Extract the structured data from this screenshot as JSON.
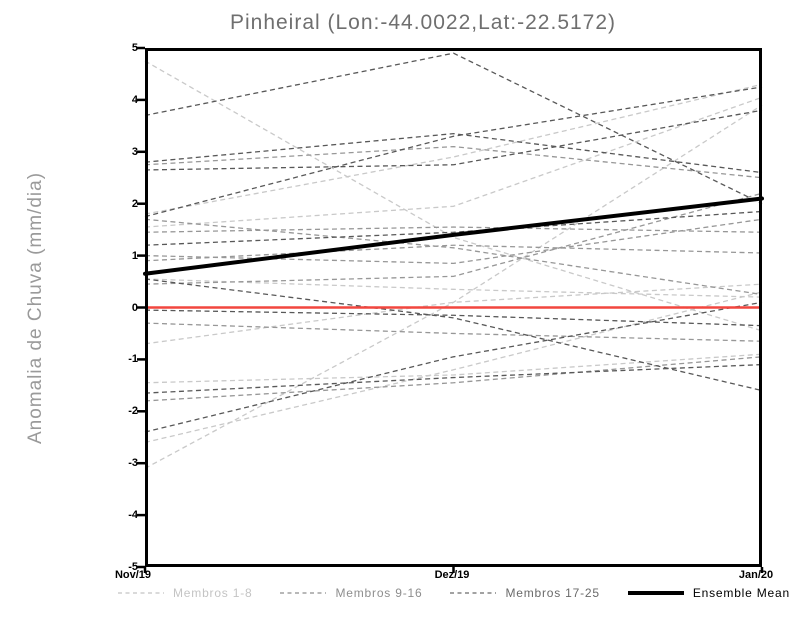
{
  "title": "Pinheiral (Lon:-44.0022,Lat:-22.5172)",
  "chart_data": {
    "type": "line",
    "title": "Pinheiral (Lon:-44.0022,Lat:-22.5172)",
    "ylabel": "Anomalia de Chuva (mm/dia)",
    "xlabel": "",
    "x_categories": [
      "Nov/19",
      "Dez/19",
      "Jan/20"
    ],
    "ylim": [
      -5,
      5
    ],
    "y_ticks": [
      5,
      4,
      3,
      2,
      1,
      0,
      -1,
      -2,
      -3,
      -4,
      -5
    ],
    "grid": false,
    "legend_position": "bottom",
    "zero_line": {
      "value": 0,
      "color": "#f2463f"
    },
    "groups": [
      {
        "name": "Membros 1-8",
        "color": "#c9c9c9",
        "members": [
          [
            4.75,
            1.35,
            -0.45
          ],
          [
            1.8,
            2.9,
            4.3
          ],
          [
            1.55,
            1.95,
            4.05
          ],
          [
            0.55,
            0.35,
            0.2
          ],
          [
            -0.7,
            0.1,
            0.45
          ],
          [
            -1.45,
            -1.3,
            -0.9
          ],
          [
            -3.1,
            0.1,
            3.9
          ],
          [
            -2.6,
            -1.2,
            0.3
          ]
        ]
      },
      {
        "name": "Membros 9-16",
        "color": "#979797",
        "members": [
          [
            2.75,
            3.1,
            2.5
          ],
          [
            1.7,
            1.15,
            0.25
          ],
          [
            1.45,
            1.55,
            1.45
          ],
          [
            0.45,
            0.6,
            2.2
          ],
          [
            -0.3,
            -0.5,
            -0.65
          ],
          [
            -1.8,
            -1.45,
            -0.95
          ],
          [
            1.0,
            0.85,
            1.7
          ],
          [
            0.9,
            1.2,
            1.05
          ]
        ]
      },
      {
        "name": "Membros 17-25",
        "color": "#585858",
        "members": [
          [
            3.7,
            4.9,
            2.0
          ],
          [
            1.75,
            3.3,
            4.25
          ],
          [
            2.8,
            3.35,
            2.6
          ],
          [
            2.65,
            2.75,
            3.8
          ],
          [
            1.2,
            1.45,
            1.85
          ],
          [
            -0.05,
            -0.15,
            -0.35
          ],
          [
            0.55,
            -0.2,
            -1.6
          ],
          [
            -1.65,
            -1.35,
            -1.1
          ],
          [
            -2.4,
            -0.95,
            0.1
          ]
        ]
      }
    ],
    "ensemble_mean": {
      "name": "Ensemble Mean",
      "color": "#000000",
      "values": [
        0.65,
        1.4,
        2.1
      ]
    },
    "legend": [
      {
        "label": "Membros 1-8",
        "color": "#c4c4c4",
        "style": "dashed"
      },
      {
        "label": "Membros 9-16",
        "color": "#8e8e8e",
        "style": "dashed"
      },
      {
        "label": "Membros 17-25",
        "color": "#6a6a6a",
        "style": "dashed"
      },
      {
        "label": "Ensemble Mean",
        "color": "#000000",
        "style": "solid"
      }
    ]
  }
}
